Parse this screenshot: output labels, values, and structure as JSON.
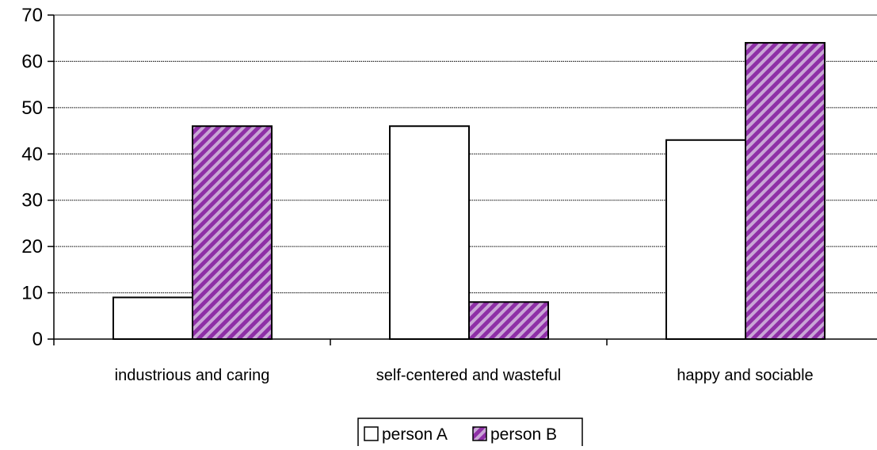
{
  "chart_data": {
    "type": "bar",
    "title": "",
    "xlabel": "",
    "ylabel": "",
    "categories": [
      "industrious and caring",
      "self-centered and wasteful",
      "happy and sociable"
    ],
    "series": [
      {
        "name": "person A",
        "values": [
          9,
          46,
          43
        ],
        "color": "#ffffff",
        "pattern": "none"
      },
      {
        "name": "person B",
        "values": [
          46,
          8,
          64
        ],
        "color": "#9b3fb0",
        "pattern": "diagonal-stripes"
      }
    ],
    "ylim": [
      0,
      70
    ],
    "yticks": [
      0,
      10,
      20,
      30,
      40,
      50,
      60,
      70
    ],
    "grid": true,
    "legend": "bottom-center"
  }
}
